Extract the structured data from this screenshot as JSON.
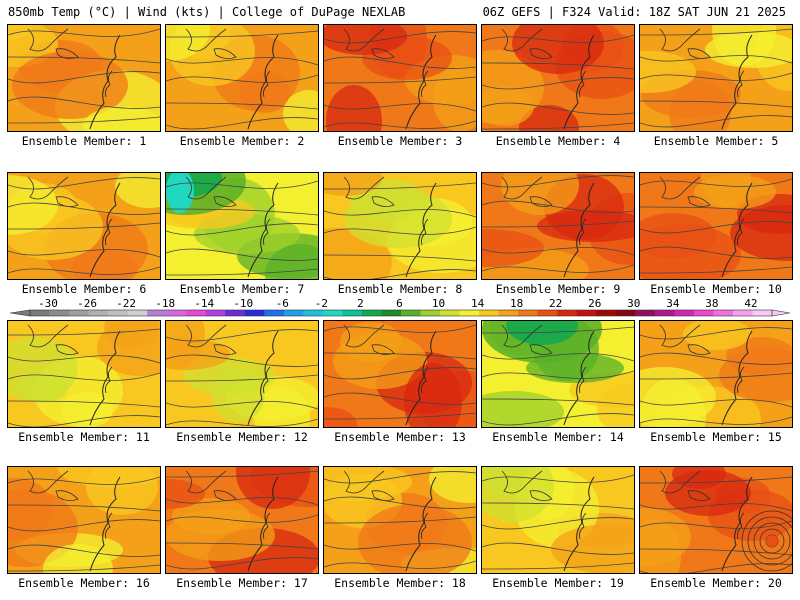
{
  "header": {
    "title": "850mb Temp (°C) | Wind (kts) | College of DuPage NEXLAB",
    "run_info": "06Z GEFS | F324 Valid: 18Z SAT JUN 21 2025"
  },
  "colorbar": {
    "labels": [
      "-30",
      "-26",
      "-22",
      "-18",
      "-14",
      "-10",
      "-6",
      "-2",
      "2",
      "6",
      "10",
      "14",
      "18",
      "22",
      "26",
      "30",
      "34",
      "38",
      "42"
    ],
    "colors": [
      "#7a7a7a",
      "#8c8c8c",
      "#9e9e9e",
      "#b0b0b0",
      "#c0c0c0",
      "#d0d0d0",
      "#b47fd6",
      "#d866e0",
      "#e64ad8",
      "#b23fe0",
      "#6a2fd0",
      "#2a2ad8",
      "#1f6fe8",
      "#1ca0e8",
      "#20c0e0",
      "#20d8c0",
      "#10c098",
      "#14a84c",
      "#1c8c28",
      "#58b028",
      "#9cd02c",
      "#d0e030",
      "#f4f030",
      "#f8c820",
      "#f4a018",
      "#f07818",
      "#e85014",
      "#d82810",
      "#c41010",
      "#a00808",
      "#840410",
      "#901060",
      "#b01890",
      "#d028b0",
      "#e848d0",
      "#f070e0",
      "#f8a0f0",
      "#f8c8f8"
    ]
  },
  "members": [
    {
      "label": "Ensemble Member: 1",
      "style": "warm"
    },
    {
      "label": "Ensemble Member: 2",
      "style": "warm"
    },
    {
      "label": "Ensemble Member: 3",
      "style": "hot"
    },
    {
      "label": "Ensemble Member: 4",
      "style": "hot"
    },
    {
      "label": "Ensemble Member: 5",
      "style": "warm"
    },
    {
      "label": "Ensemble Member: 6",
      "style": "warm"
    },
    {
      "label": "Ensemble Member: 7",
      "style": "cool"
    },
    {
      "label": "Ensemble Member: 8",
      "style": "mild"
    },
    {
      "label": "Ensemble Member: 9",
      "style": "hot"
    },
    {
      "label": "Ensemble Member: 10",
      "style": "hot"
    },
    {
      "label": "Ensemble Member: 11",
      "style": "mild"
    },
    {
      "label": "Ensemble Member: 12",
      "style": "mild"
    },
    {
      "label": "Ensemble Member: 13",
      "style": "hot"
    },
    {
      "label": "Ensemble Member: 14",
      "style": "cool"
    },
    {
      "label": "Ensemble Member: 15",
      "style": "warm"
    },
    {
      "label": "Ensemble Member: 16",
      "style": "warm"
    },
    {
      "label": "Ensemble Member: 17",
      "style": "hot"
    },
    {
      "label": "Ensemble Member: 18",
      "style": "warm"
    },
    {
      "label": "Ensemble Member: 19",
      "style": "mild"
    },
    {
      "label": "Ensemble Member: 20",
      "style": "hot"
    }
  ]
}
